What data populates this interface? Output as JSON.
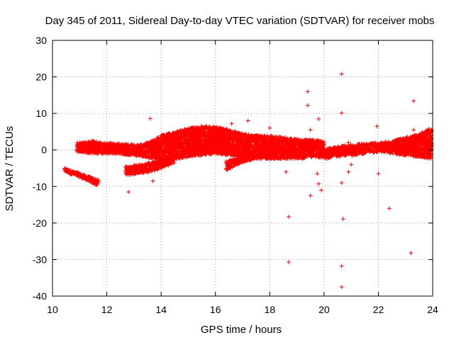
{
  "chart_data": {
    "type": "scatter",
    "title": "Day 345 of 2011, Sidereal Day-to-day VTEC variation (SDTVAR) for receiver mobs",
    "xlabel": "GPS time / hours",
    "ylabel": "SDTVAR / TECUs",
    "xlim": [
      10,
      24
    ],
    "ylim": [
      -40,
      30
    ],
    "xticks": [
      10,
      12,
      14,
      16,
      18,
      20,
      22,
      24
    ],
    "yticks": [
      -40,
      -30,
      -20,
      -10,
      0,
      10,
      20,
      30
    ],
    "grid": true,
    "marker": "+",
    "color": "#ff0000",
    "bands": [
      {
        "x": [
          10.45,
          11.1,
          11.7
        ],
        "lo": [
          -6.0,
          -7.8,
          -10.0
        ],
        "hi": [
          -5.0,
          -6.6,
          -8.2
        ]
      },
      {
        "x": [
          10.9,
          11.5,
          12.0,
          12.5,
          13.0,
          13.5,
          14.0,
          14.5,
          15.0,
          15.5,
          16.0,
          16.5,
          17.0,
          17.5,
          18.0,
          18.5,
          19.0,
          19.5,
          20.0
        ],
        "lo": [
          -0.5,
          -1.0,
          -1.0,
          -1.2,
          -1.5,
          -2.0,
          -3.0,
          -2.5,
          -2.0,
          -1.5,
          -1.0,
          -1.5,
          -2.0,
          -2.5,
          -2.5,
          -2.5,
          -2.5,
          -2.0,
          -2.0
        ],
        "hi": [
          2.0,
          2.5,
          2.0,
          1.8,
          1.5,
          2.0,
          4.0,
          5.0,
          6.0,
          6.5,
          6.5,
          5.5,
          4.5,
          4.0,
          4.0,
          3.5,
          3.0,
          2.8,
          2.5
        ]
      },
      {
        "x": [
          12.7,
          13.2,
          13.6,
          14.0,
          14.5
        ],
        "lo": [
          -7.0,
          -6.5,
          -6.0,
          -5.0,
          -3.5
        ],
        "hi": [
          -4.5,
          -4.0,
          -3.5,
          -2.5,
          -1.0
        ]
      },
      {
        "x": [
          16.4,
          16.7,
          17.0,
          17.4
        ],
        "lo": [
          -5.5,
          -4.5,
          -3.5,
          -2.5
        ],
        "hi": [
          -3.0,
          -2.5,
          -1.5,
          -0.5
        ]
      },
      {
        "x": [
          20.0,
          20.5,
          21.0,
          21.5,
          22.0,
          22.5,
          23.0,
          23.5,
          23.95
        ],
        "lo": [
          -2.5,
          -2.0,
          -1.5,
          -1.0,
          -0.5,
          -1.0,
          -1.5,
          -2.0,
          -2.5
        ],
        "hi": [
          0.5,
          1.0,
          1.5,
          1.8,
          2.0,
          2.5,
          3.5,
          4.5,
          6.0
        ]
      }
    ],
    "outliers": [
      [
        13.6,
        8.6
      ],
      [
        12.8,
        -11.5
      ],
      [
        13.7,
        -8.5
      ],
      [
        16.6,
        7.2
      ],
      [
        17.2,
        8.0
      ],
      [
        18.0,
        6.0
      ],
      [
        18.7,
        -18.3
      ],
      [
        18.7,
        -30.7
      ],
      [
        18.6,
        -6.0
      ],
      [
        19.4,
        16.0
      ],
      [
        19.4,
        12.2
      ],
      [
        19.5,
        5.5
      ],
      [
        19.5,
        -12.5
      ],
      [
        19.8,
        8.5
      ],
      [
        19.8,
        -9.3
      ],
      [
        19.9,
        -11.0
      ],
      [
        19.75,
        -6.5
      ],
      [
        20.65,
        20.8
      ],
      [
        20.65,
        10.1
      ],
      [
        20.65,
        -9.0
      ],
      [
        20.7,
        -18.9
      ],
      [
        20.65,
        -31.8
      ],
      [
        20.65,
        -37.5
      ],
      [
        20.9,
        2.0
      ],
      [
        20.9,
        -6.0
      ],
      [
        21.0,
        -4.0
      ],
      [
        21.95,
        6.5
      ],
      [
        22.0,
        -6.5
      ],
      [
        22.4,
        -16.0
      ],
      [
        23.3,
        13.4
      ],
      [
        23.3,
        5.5
      ],
      [
        23.2,
        -28.2
      ]
    ]
  }
}
